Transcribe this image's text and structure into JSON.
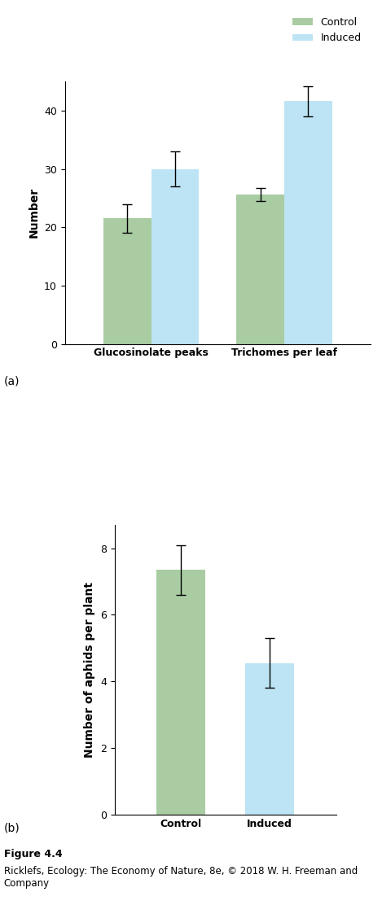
{
  "chart_data": [
    {
      "type": "bar",
      "annotations": [
        "(a)"
      ],
      "y_label": "Number",
      "categories": [
        "Glucosinolate peaks",
        "Trichomes per leaf"
      ],
      "series": [
        {
          "name": "Control",
          "color": "#a9cca3",
          "values": [
            21.5,
            25.6
          ],
          "errors": [
            2.5,
            1.1
          ]
        },
        {
          "name": "Induced",
          "color": "#bde4f4",
          "values": [
            30.0,
            41.6
          ],
          "errors": [
            3.0,
            2.6
          ]
        }
      ],
      "ylim": [
        0,
        45
      ],
      "yticks": [
        0,
        10,
        20,
        30,
        40
      ],
      "legend": "upper right"
    },
    {
      "type": "bar",
      "annotations": [
        "(b)"
      ],
      "y_label": "Number of aphids per plant",
      "categories": [
        "Control",
        "Induced"
      ],
      "values": [
        7.35,
        4.55
      ],
      "errors": [
        0.75,
        0.75
      ],
      "colors": [
        "#a9cca3",
        "#bde4f4"
      ],
      "ylim": [
        0,
        8.7
      ],
      "yticks": [
        0,
        2,
        4,
        6,
        8
      ]
    }
  ],
  "caption": {
    "figure": "Figure 4.4",
    "credit": "Ricklefs, Ecology: The Economy of Nature, 8e, © 2018 W. H. Freeman and Company"
  }
}
